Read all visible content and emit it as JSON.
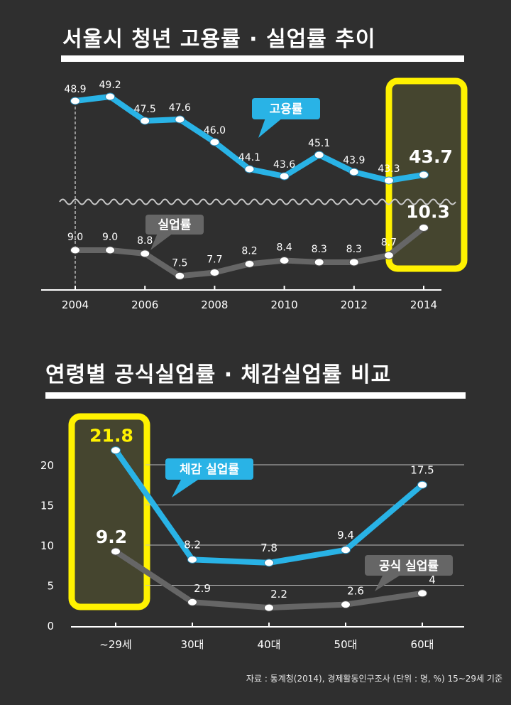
{
  "source_note": "자료 : 통계청(2014), 경제활동인구조사 (단위 : 명, %) 15~29세 기준",
  "colors": {
    "background": "#2f2f2f",
    "employment": "#29b3e6",
    "unemployment": "#666666",
    "highlight_border": "#fff200",
    "highlight_fill": "#45452f",
    "highlight_text": "#fff200"
  },
  "chart_data": [
    {
      "type": "line",
      "title": "서울시 청년 고용률 · 실업률 추이",
      "x": [
        2004,
        2005,
        2006,
        2007,
        2008,
        2009,
        2010,
        2011,
        2012,
        2013,
        2014
      ],
      "x_tick_labels": [
        "2004",
        "2006",
        "2008",
        "2010",
        "2012",
        "2014"
      ],
      "axis_break": true,
      "grid": false,
      "highlight": "2014",
      "series": [
        {
          "name": "고용률",
          "values": [
            48.9,
            49.2,
            47.5,
            47.6,
            46.0,
            44.1,
            43.6,
            45.1,
            43.9,
            43.3,
            43.7
          ],
          "labels": [
            "48.9",
            "49.2",
            "47.5",
            "47.6",
            "46.0",
            "44.1",
            "43.6",
            "45.1",
            "43.9",
            "43.3",
            "43.7"
          ]
        },
        {
          "name": "실업률",
          "values": [
            9.0,
            9.0,
            8.8,
            7.5,
            7.7,
            8.2,
            8.4,
            8.3,
            8.3,
            8.7,
            10.3
          ],
          "labels": [
            "9.0",
            "9.0",
            "8.8",
            "7.5",
            "7.7",
            "8.2",
            "8.4",
            "8.3",
            "8.3",
            "8.7",
            "10.3"
          ]
        }
      ]
    },
    {
      "type": "line",
      "title": "연령별 공식실업률 · 체감실업률 비교",
      "categories": [
        "~29세",
        "30대",
        "40대",
        "50대",
        "60대"
      ],
      "y_ticks": [
        "0",
        "5",
        "10",
        "15",
        "20"
      ],
      "ylim": [
        0,
        22.5
      ],
      "grid": true,
      "highlight": "~29세",
      "series": [
        {
          "name": "체감 실업률",
          "values": [
            21.8,
            8.2,
            7.8,
            9.4,
            17.5
          ],
          "labels": [
            "21.8",
            "8.2",
            "7.8",
            "9.4",
            "17.5"
          ]
        },
        {
          "name": "공식 실업률",
          "values": [
            9.2,
            2.9,
            2.2,
            2.6,
            4
          ],
          "labels": [
            "9.2",
            "2.9",
            "2.2",
            "2.6",
            "4"
          ]
        }
      ]
    }
  ]
}
